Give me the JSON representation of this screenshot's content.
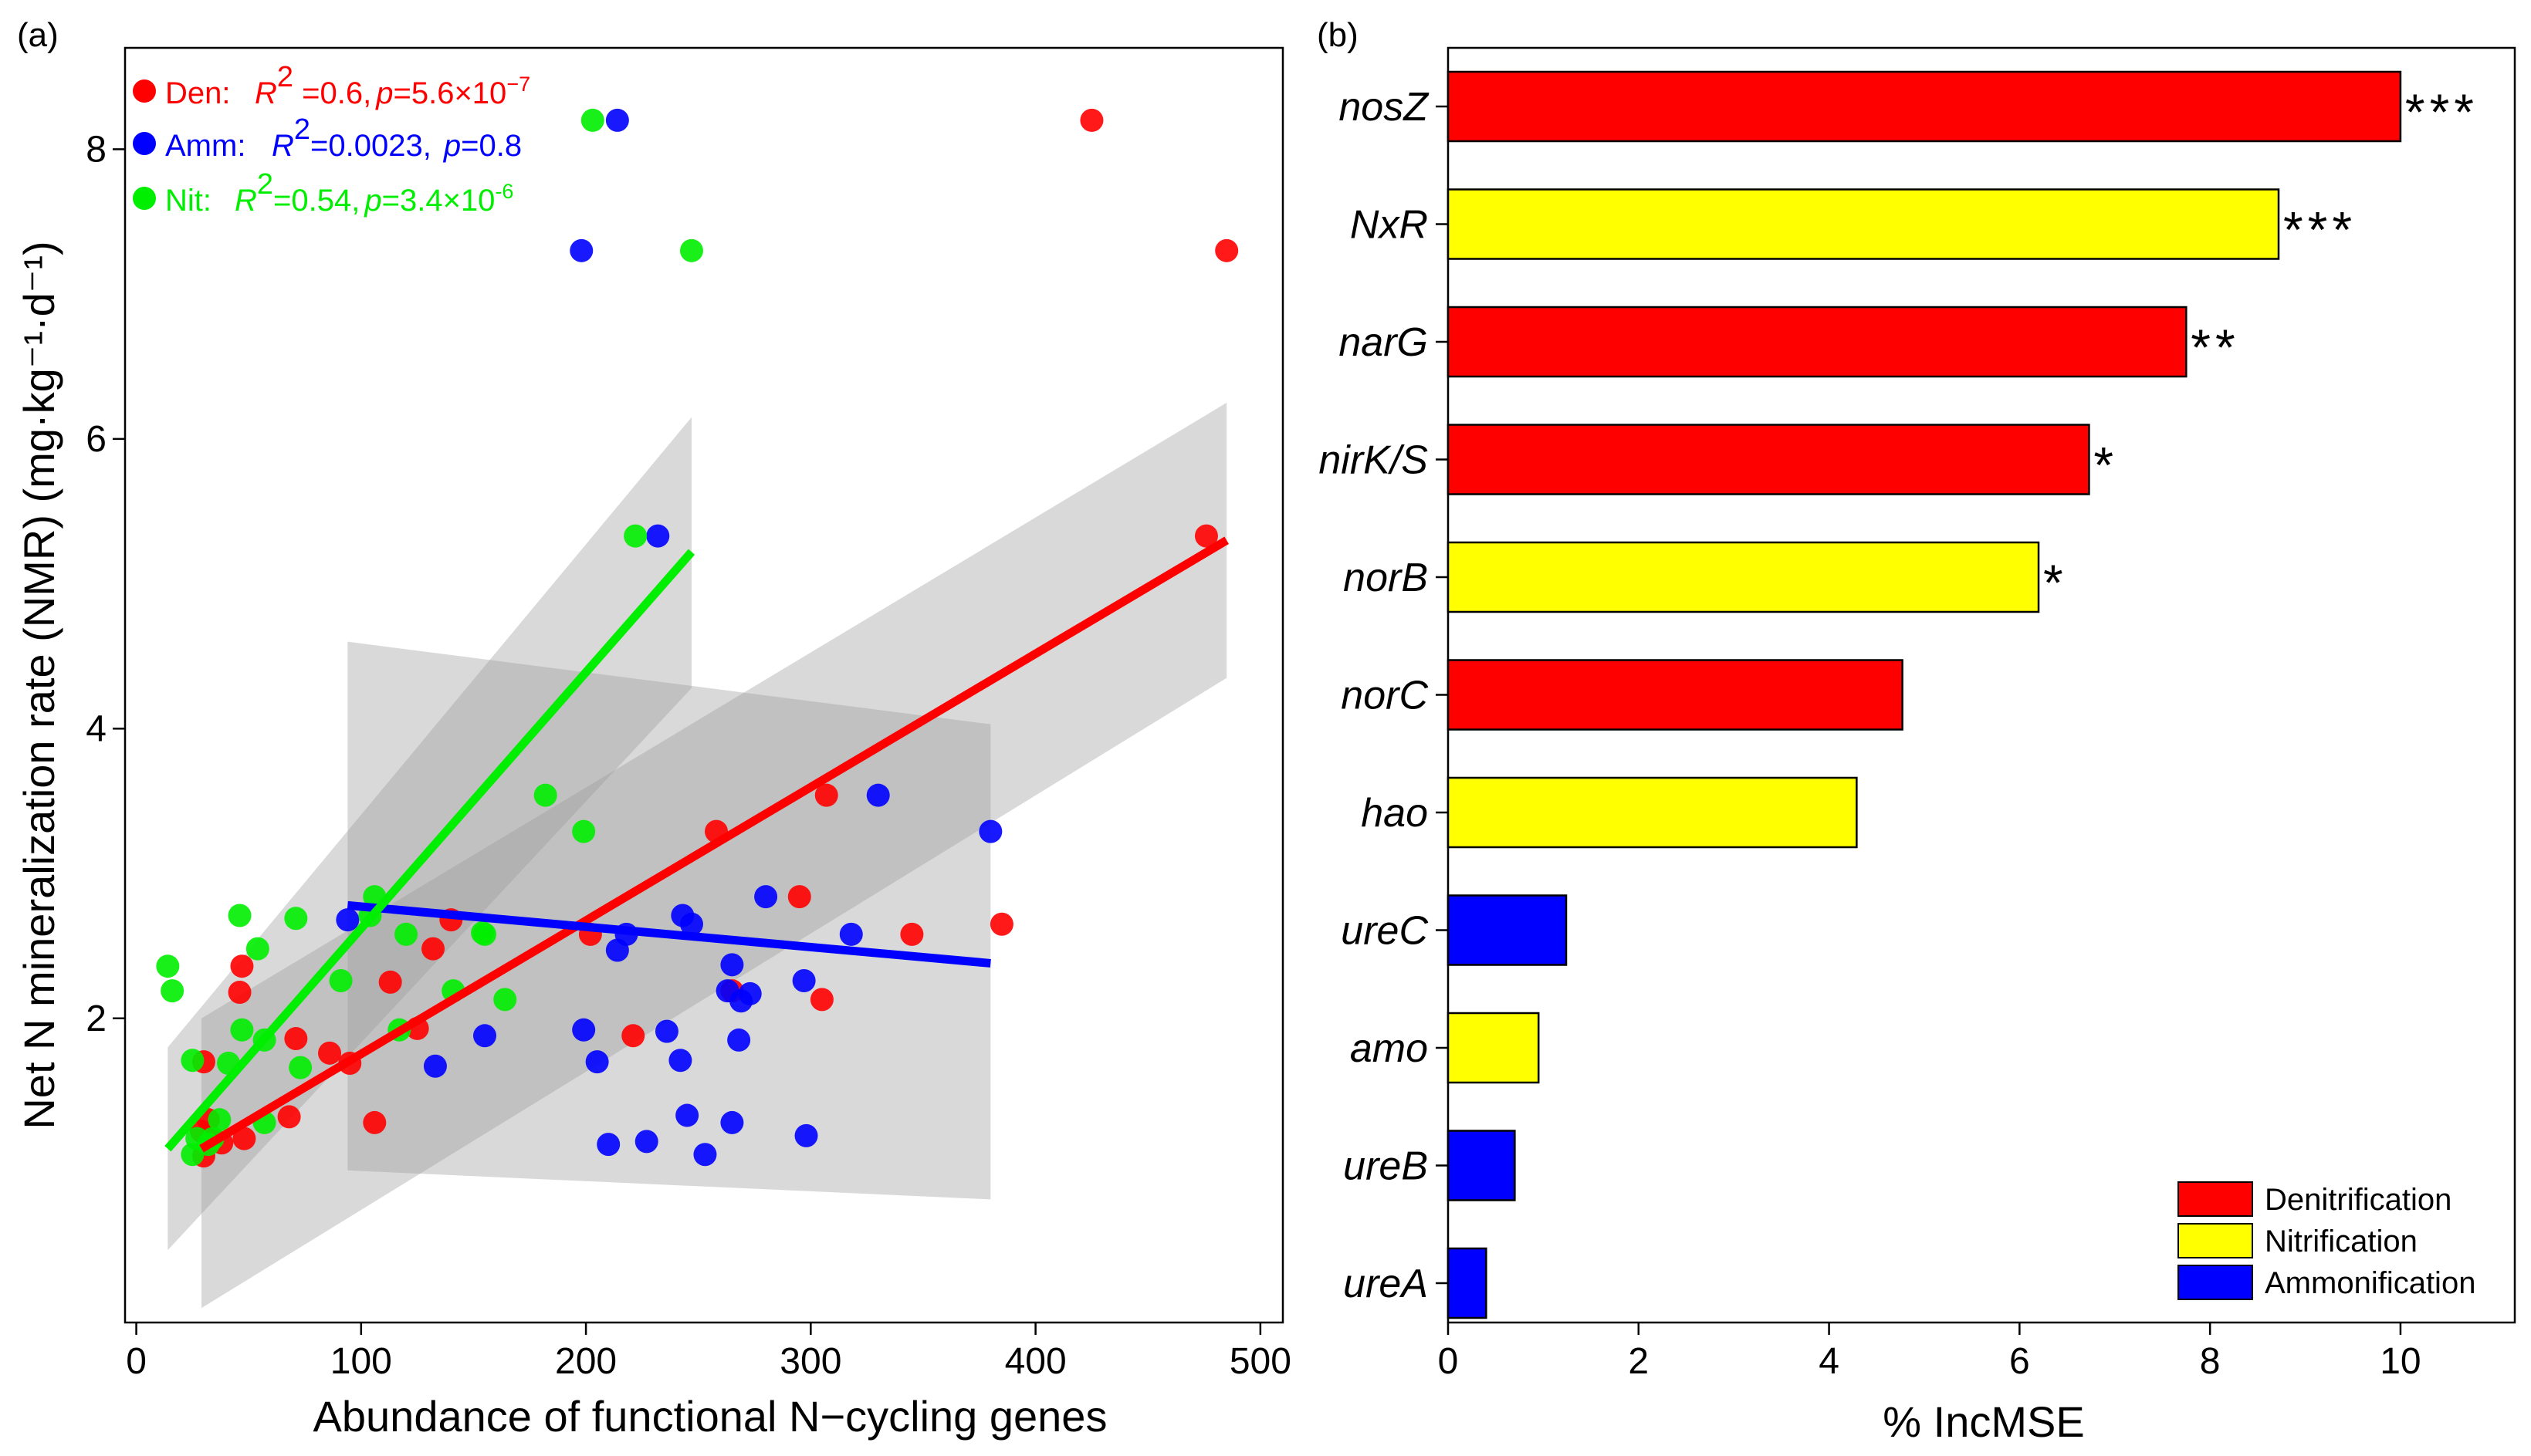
{
  "chart_data": [
    {
      "panel_label": "(a)",
      "type": "scatter",
      "xlabel": "Abundance of functional N−cycling genes",
      "ylabel": "Net N mineralization rate (NMR) (mg·kg⁻¹·d⁻¹)",
      "xlim": [
        -5,
        510
      ],
      "ylim": [
        -0.1,
        8.7
      ],
      "xticks": [
        "0",
        "100",
        "200",
        "300",
        "400",
        "500"
      ],
      "yticks": [
        "2",
        "4",
        "6",
        "8"
      ],
      "legend": [
        {
          "key": "den",
          "name": "Den:",
          "r2_label": "R",
          "r2_sup": "2",
          "r2_value": " =0.6,",
          "p_label": "p",
          "p_value": "=5.6×10",
          "p_sup": "−7",
          "color": "#ff0000"
        },
        {
          "key": "amm",
          "name": "Amm:",
          "r2_label": "R",
          "r2_sup": "2",
          "r2_value": "=0.0023,",
          "p_label": "p",
          "p_value": "=0.8",
          "p_sup": "",
          "color": "#0000ff"
        },
        {
          "key": "nit",
          "name": "Nit:",
          "r2_label": "R",
          "r2_sup": "2",
          "r2_value": "=0.54,",
          "p_label": "p",
          "p_value": "=3.4×10",
          "p_sup": "-6",
          "color": "#00ee00"
        }
      ],
      "series": [
        {
          "name": "Den",
          "color": "#ff0000",
          "points": [
            [
              425,
              8.2
            ],
            [
              485,
              7.3
            ],
            [
              476,
              5.33
            ],
            [
              385,
              2.65
            ],
            [
              345,
              2.58
            ],
            [
              307,
              3.54
            ],
            [
              305,
              2.13
            ],
            [
              295,
              2.84
            ],
            [
              258,
              3.29
            ],
            [
              265,
              2.19
            ],
            [
              221,
              1.88
            ],
            [
              202,
              2.58
            ],
            [
              140,
              2.68
            ],
            [
              132,
              2.48
            ],
            [
              125,
              1.93
            ],
            [
              113,
              2.25
            ],
            [
              106,
              1.28
            ],
            [
              95,
              1.69
            ],
            [
              86,
              1.76
            ],
            [
              71,
              1.86
            ],
            [
              68,
              1.32
            ],
            [
              48,
              1.17
            ],
            [
              47,
              2.36
            ],
            [
              46,
              2.18
            ],
            [
              38,
              1.14
            ],
            [
              34,
              1.17
            ],
            [
              32,
              1.3
            ],
            [
              30,
              1.7
            ],
            [
              30,
              1.05
            ],
            [
              29,
              1.22
            ]
          ]
        },
        {
          "name": "Amm",
          "color": "#0000ff",
          "points": [
            [
              214,
              8.2
            ],
            [
              198,
              7.3
            ],
            [
              232,
              5.33
            ],
            [
              380,
              3.29
            ],
            [
              330,
              3.54
            ],
            [
              318,
              2.58
            ],
            [
              297,
              2.26
            ],
            [
              298,
              1.19
            ],
            [
              280,
              2.84
            ],
            [
              273,
              2.17
            ],
            [
              269,
              2.12
            ],
            [
              268,
              1.85
            ],
            [
              265,
              2.37
            ],
            [
              263,
              2.19
            ],
            [
              265,
              1.28
            ],
            [
              253,
              1.06
            ],
            [
              247,
              2.65
            ],
            [
              245,
              1.33
            ],
            [
              243,
              2.71
            ],
            [
              242,
              1.71
            ],
            [
              236,
              1.91
            ],
            [
              227,
              1.15
            ],
            [
              218,
              2.58
            ],
            [
              214,
              2.47
            ],
            [
              210,
              1.13
            ],
            [
              205,
              1.7
            ],
            [
              199,
              1.92
            ],
            [
              155,
              1.88
            ],
            [
              133,
              1.67
            ],
            [
              94,
              2.68
            ]
          ]
        },
        {
          "name": "Nit",
          "color": "#00ee00",
          "points": [
            [
              203,
              8.2
            ],
            [
              247,
              7.3
            ],
            [
              222,
              5.33
            ],
            [
              182,
              3.54
            ],
            [
              199,
              3.29
            ],
            [
              164,
              2.13
            ],
            [
              155,
              2.58
            ],
            [
              154,
              2.59
            ],
            [
              141,
              2.19
            ],
            [
              120,
              2.58
            ],
            [
              117,
              1.92
            ],
            [
              106,
              2.84
            ],
            [
              104,
              2.71
            ],
            [
              91,
              2.26
            ],
            [
              73,
              1.66
            ],
            [
              71,
              2.69
            ],
            [
              57,
              1.85
            ],
            [
              57,
              1.28
            ],
            [
              54,
              2.48
            ],
            [
              47,
              1.92
            ],
            [
              46,
              2.71
            ],
            [
              41,
              1.69
            ],
            [
              37,
              1.3
            ],
            [
              34,
              1.17
            ],
            [
              32,
              1.13
            ],
            [
              27,
              1.17
            ],
            [
              25,
              1.06
            ],
            [
              25,
              1.71
            ],
            [
              16,
              2.19
            ],
            [
              14,
              2.36
            ]
          ]
        }
      ],
      "fits": [
        {
          "name": "Den",
          "color": "#ff0000",
          "x": [
            29,
            485
          ],
          "y": [
            1.1,
            5.3
          ],
          "ci_lo_y": [
            0.0,
            4.35
          ],
          "ci_hi_y": [
            2.0,
            6.25
          ]
        },
        {
          "name": "Amm",
          "color": "#0000ff",
          "x": [
            94,
            380
          ],
          "y": [
            2.78,
            2.38
          ],
          "ci_lo_y": [
            0.95,
            0.75
          ],
          "ci_hi_y": [
            4.6,
            4.03
          ]
        },
        {
          "name": "Nit",
          "color": "#00ee00",
          "x": [
            14,
            247
          ],
          "y": [
            1.1,
            5.22
          ],
          "ci_lo_y": [
            0.4,
            4.28
          ],
          "ci_hi_y": [
            1.8,
            6.15
          ]
        }
      ]
    },
    {
      "panel_label": "(b)",
      "type": "bar",
      "orientation": "horizontal",
      "xlabel": "% IncMSE",
      "xlim": [
        0,
        11.2
      ],
      "xticks": [
        "0",
        "2",
        "4",
        "6",
        "8",
        "10"
      ],
      "categories": [
        "nosZ",
        "NxR",
        "narG",
        "nirK/S",
        "norB",
        "norC",
        "hao",
        "ureC",
        "amo",
        "ureB",
        "ureA"
      ],
      "values": [
        10.0,
        8.72,
        7.75,
        6.73,
        6.2,
        4.77,
        4.29,
        1.24,
        0.95,
        0.7,
        0.4
      ],
      "groups": [
        "Denitrification",
        "Nitrification",
        "Denitrification",
        "Denitrification",
        "Nitrification",
        "Denitrification",
        "Nitrification",
        "Ammonification",
        "Nitrification",
        "Ammonification",
        "Ammonification"
      ],
      "significance": [
        "***",
        "***",
        "**",
        "*",
        "*",
        "",
        "",
        "",
        "",
        "",
        ""
      ],
      "legend": [
        {
          "name": "Denitrification",
          "color": "#ff0000"
        },
        {
          "name": "Nitrification",
          "color": "#ffff00"
        },
        {
          "name": "Ammonification",
          "color": "#0000ff"
        }
      ]
    }
  ]
}
